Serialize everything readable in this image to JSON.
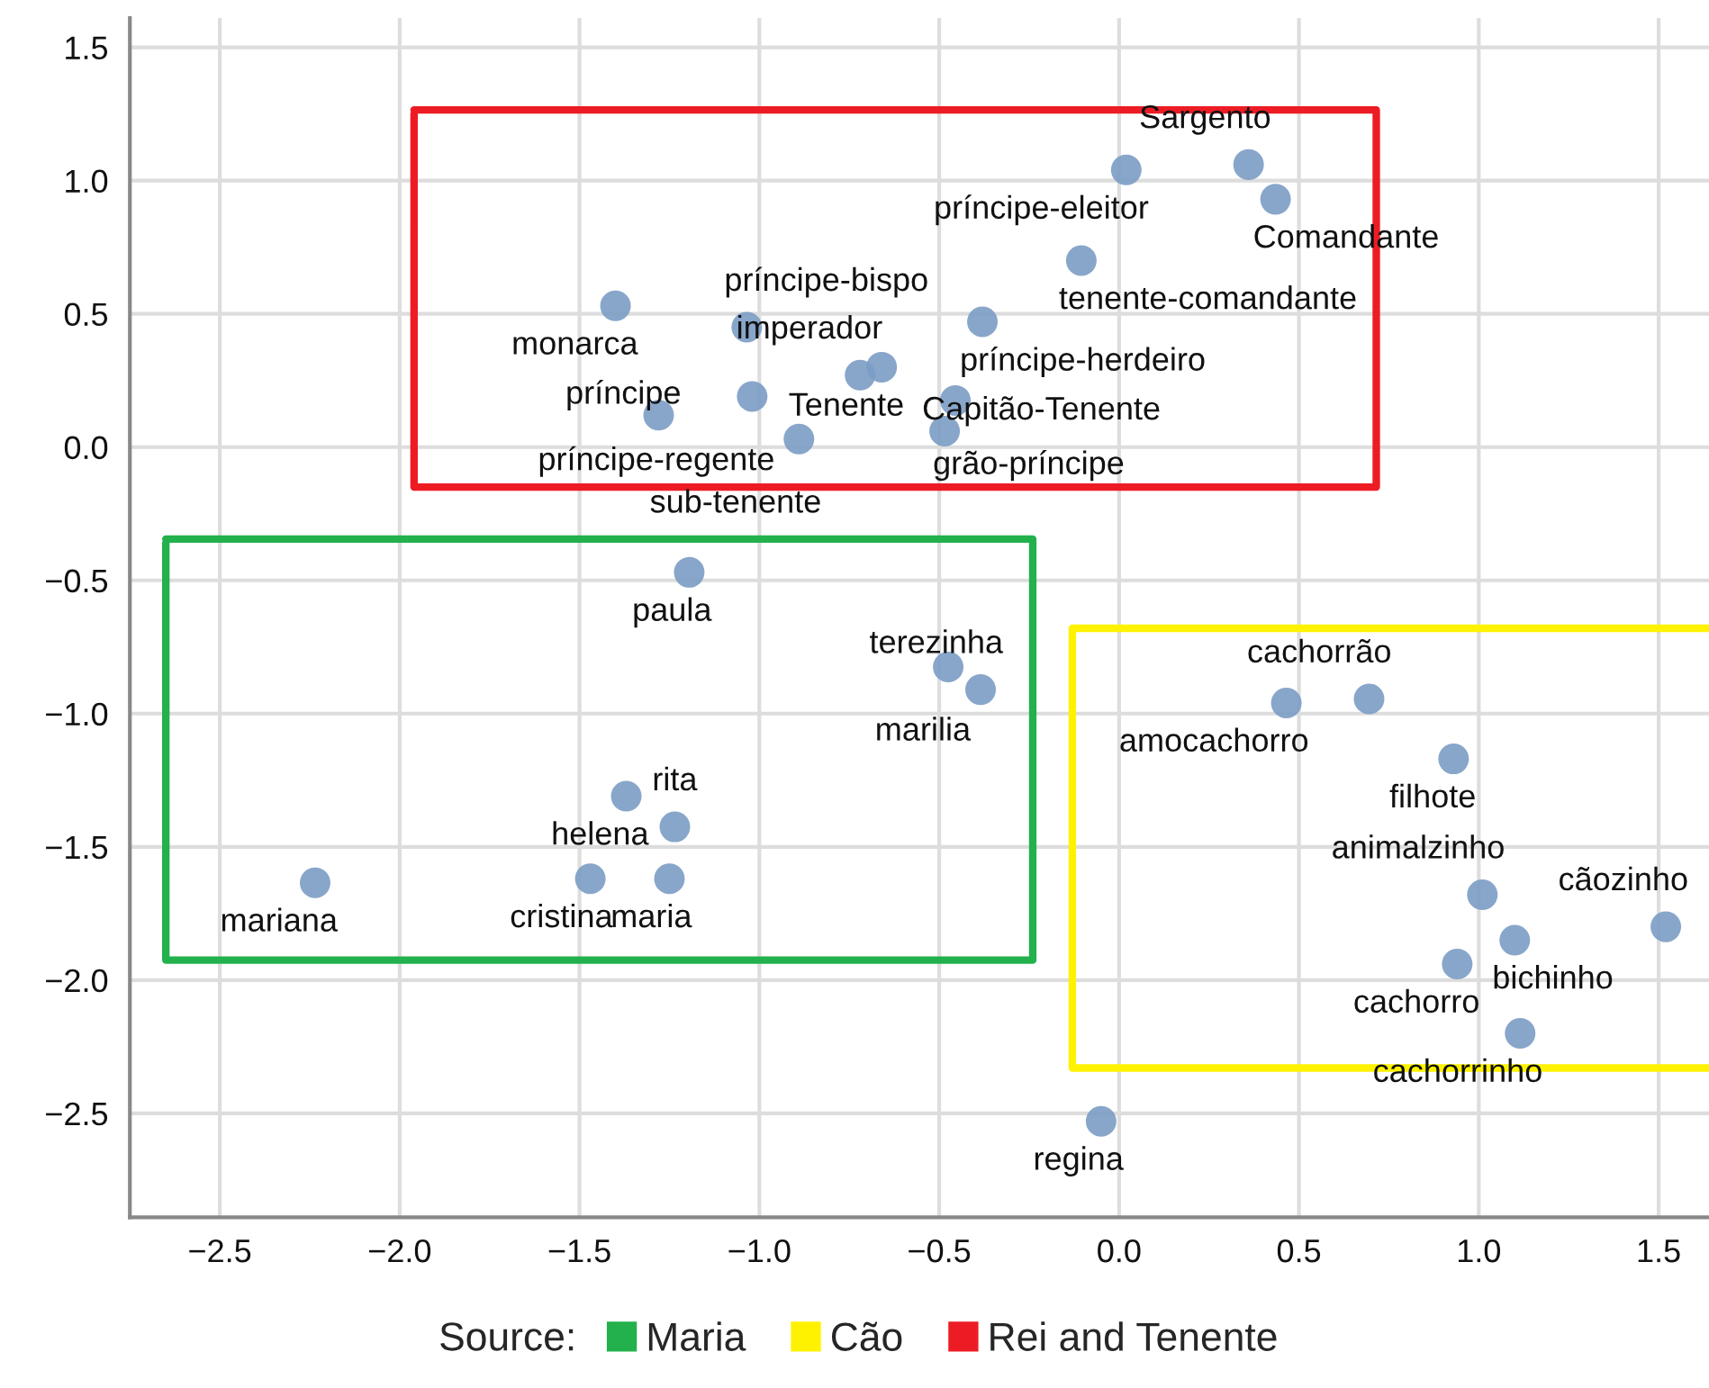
{
  "chart_data": {
    "type": "scatter",
    "legend_title": "Source:",
    "xlim": [
      -2.75,
      1.64
    ],
    "ylim": [
      -2.89,
      1.61
    ],
    "xticks": [
      -2.5,
      {
        "value": -2,
        "label": "−2.0"
      },
      -1.5,
      {
        "value": -1,
        "label": "−1.0"
      },
      -0.5,
      {
        "value": 0,
        "label": "0.0"
      },
      0.5,
      {
        "value": 1,
        "label": "1.0"
      },
      1.5
    ],
    "yticks": [
      -2.5,
      {
        "value": -2,
        "label": "−2.0"
      },
      -1.5,
      {
        "value": -1,
        "label": "−1.0"
      },
      -0.5,
      {
        "value": 0,
        "label": "0.0"
      },
      0.5,
      {
        "value": 1,
        "label": "1.0"
      },
      1.5
    ],
    "grid": true,
    "legend": "bottom",
    "marker": "circle",
    "series": [
      {
        "color": "#7b9cc4",
        "x": [
          0.02,
          0.36,
          0.435,
          -0.105,
          -1.4,
          -1.035,
          -0.38,
          -0.66,
          -0.72,
          -1.02,
          -1.28,
          -0.455,
          -0.485,
          -0.89,
          -1.195,
          -0.475,
          -0.385,
          -1.37,
          -1.235,
          -1.25,
          -1.47,
          -2.235,
          0.465,
          0.695,
          0.93,
          1.01,
          1.1,
          1.52,
          0.94,
          1.115,
          -0.05
        ],
        "values": [
          1.04,
          1.06,
          0.93,
          0.7,
          0.53,
          0.45,
          0.47,
          0.3,
          0.27,
          0.19,
          0.12,
          0.175,
          0.06,
          0.03,
          -0.47,
          -0.825,
          -0.91,
          -1.31,
          -1.425,
          -1.62,
          -1.62,
          -1.635,
          -0.96,
          -0.945,
          -1.17,
          -1.68,
          -1.85,
          -1.8,
          -1.94,
          -2.2,
          -2.53
        ],
        "value_labels": [
          "príncipe-eleitor",
          "Sargento",
          "Comandante",
          "tenente-comandante",
          "monarca",
          "príncipe-bispo",
          "príncipe-herdeiro",
          "Tenente",
          "imperador",
          "príncipe-regente",
          "príncipe",
          "grão-príncipe",
          "Capitão-Tenente",
          "sub-tenente",
          "paula",
          "marilia",
          "terezinha",
          "helena",
          "rita",
          "maria",
          "cristina",
          "mariana",
          "amocachorro",
          "cachorrão",
          "filhote",
          "animalzinho",
          "bichinho",
          "cãozinho",
          "cachorro",
          "cachorrinho",
          "regina"
        ]
      },
      {
        "type": "line",
        "marker": "none",
        "name": "Maria",
        "color": "#22b14c",
        "x": [
          -2.65,
          -0.24,
          -0.24,
          -2.65,
          -2.65
        ],
        "values": [
          -0.345,
          -0.345,
          -1.925,
          -1.925,
          -0.36
        ]
      },
      {
        "type": "line",
        "marker": "none",
        "name": "Cão",
        "color": "#fff200",
        "x": [
          1.64,
          -0.13,
          -0.13,
          1.64
        ],
        "values": [
          -0.68,
          -0.68,
          -2.33,
          -2.33
        ]
      },
      {
        "type": "line",
        "marker": "none",
        "name": "Rei and Tenente",
        "color": "#ed1c24",
        "x": [
          -1.96,
          0.715,
          0.715,
          -1.96,
          -1.96
        ],
        "values": [
          1.265,
          1.265,
          -0.15,
          -0.15,
          1.25
        ]
      }
    ]
  }
}
